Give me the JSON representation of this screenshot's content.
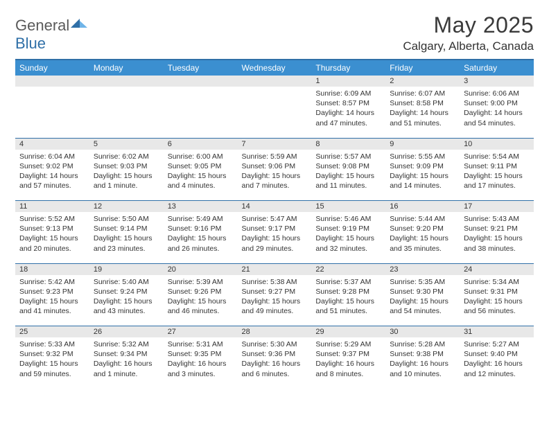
{
  "brand": {
    "word1": "General",
    "word2": "Blue"
  },
  "title": "May 2025",
  "location": "Calgary, Alberta, Canada",
  "colors": {
    "header_bg": "#3b8fd0",
    "header_text": "#ffffff",
    "accent_line": "#2f6fa7",
    "daynum_bg": "#e8e8e8",
    "text": "#333333",
    "brand_gray": "#5a5a5a",
    "brand_blue": "#2f6fa7"
  },
  "day_names": [
    "Sunday",
    "Monday",
    "Tuesday",
    "Wednesday",
    "Thursday",
    "Friday",
    "Saturday"
  ],
  "weeks": [
    [
      null,
      null,
      null,
      null,
      {
        "n": "1",
        "sr": "6:09 AM",
        "ss": "8:57 PM",
        "dl": "14 hours and 47 minutes."
      },
      {
        "n": "2",
        "sr": "6:07 AM",
        "ss": "8:58 PM",
        "dl": "14 hours and 51 minutes."
      },
      {
        "n": "3",
        "sr": "6:06 AM",
        "ss": "9:00 PM",
        "dl": "14 hours and 54 minutes."
      }
    ],
    [
      {
        "n": "4",
        "sr": "6:04 AM",
        "ss": "9:02 PM",
        "dl": "14 hours and 57 minutes."
      },
      {
        "n": "5",
        "sr": "6:02 AM",
        "ss": "9:03 PM",
        "dl": "15 hours and 1 minute."
      },
      {
        "n": "6",
        "sr": "6:00 AM",
        "ss": "9:05 PM",
        "dl": "15 hours and 4 minutes."
      },
      {
        "n": "7",
        "sr": "5:59 AM",
        "ss": "9:06 PM",
        "dl": "15 hours and 7 minutes."
      },
      {
        "n": "8",
        "sr": "5:57 AM",
        "ss": "9:08 PM",
        "dl": "15 hours and 11 minutes."
      },
      {
        "n": "9",
        "sr": "5:55 AM",
        "ss": "9:09 PM",
        "dl": "15 hours and 14 minutes."
      },
      {
        "n": "10",
        "sr": "5:54 AM",
        "ss": "9:11 PM",
        "dl": "15 hours and 17 minutes."
      }
    ],
    [
      {
        "n": "11",
        "sr": "5:52 AM",
        "ss": "9:13 PM",
        "dl": "15 hours and 20 minutes."
      },
      {
        "n": "12",
        "sr": "5:50 AM",
        "ss": "9:14 PM",
        "dl": "15 hours and 23 minutes."
      },
      {
        "n": "13",
        "sr": "5:49 AM",
        "ss": "9:16 PM",
        "dl": "15 hours and 26 minutes."
      },
      {
        "n": "14",
        "sr": "5:47 AM",
        "ss": "9:17 PM",
        "dl": "15 hours and 29 minutes."
      },
      {
        "n": "15",
        "sr": "5:46 AM",
        "ss": "9:19 PM",
        "dl": "15 hours and 32 minutes."
      },
      {
        "n": "16",
        "sr": "5:44 AM",
        "ss": "9:20 PM",
        "dl": "15 hours and 35 minutes."
      },
      {
        "n": "17",
        "sr": "5:43 AM",
        "ss": "9:21 PM",
        "dl": "15 hours and 38 minutes."
      }
    ],
    [
      {
        "n": "18",
        "sr": "5:42 AM",
        "ss": "9:23 PM",
        "dl": "15 hours and 41 minutes."
      },
      {
        "n": "19",
        "sr": "5:40 AM",
        "ss": "9:24 PM",
        "dl": "15 hours and 43 minutes."
      },
      {
        "n": "20",
        "sr": "5:39 AM",
        "ss": "9:26 PM",
        "dl": "15 hours and 46 minutes."
      },
      {
        "n": "21",
        "sr": "5:38 AM",
        "ss": "9:27 PM",
        "dl": "15 hours and 49 minutes."
      },
      {
        "n": "22",
        "sr": "5:37 AM",
        "ss": "9:28 PM",
        "dl": "15 hours and 51 minutes."
      },
      {
        "n": "23",
        "sr": "5:35 AM",
        "ss": "9:30 PM",
        "dl": "15 hours and 54 minutes."
      },
      {
        "n": "24",
        "sr": "5:34 AM",
        "ss": "9:31 PM",
        "dl": "15 hours and 56 minutes."
      }
    ],
    [
      {
        "n": "25",
        "sr": "5:33 AM",
        "ss": "9:32 PM",
        "dl": "15 hours and 59 minutes."
      },
      {
        "n": "26",
        "sr": "5:32 AM",
        "ss": "9:34 PM",
        "dl": "16 hours and 1 minute."
      },
      {
        "n": "27",
        "sr": "5:31 AM",
        "ss": "9:35 PM",
        "dl": "16 hours and 3 minutes."
      },
      {
        "n": "28",
        "sr": "5:30 AM",
        "ss": "9:36 PM",
        "dl": "16 hours and 6 minutes."
      },
      {
        "n": "29",
        "sr": "5:29 AM",
        "ss": "9:37 PM",
        "dl": "16 hours and 8 minutes."
      },
      {
        "n": "30",
        "sr": "5:28 AM",
        "ss": "9:38 PM",
        "dl": "16 hours and 10 minutes."
      },
      {
        "n": "31",
        "sr": "5:27 AM",
        "ss": "9:40 PM",
        "dl": "16 hours and 12 minutes."
      }
    ]
  ],
  "labels": {
    "sunrise": "Sunrise:",
    "sunset": "Sunset:",
    "daylight": "Daylight:"
  }
}
